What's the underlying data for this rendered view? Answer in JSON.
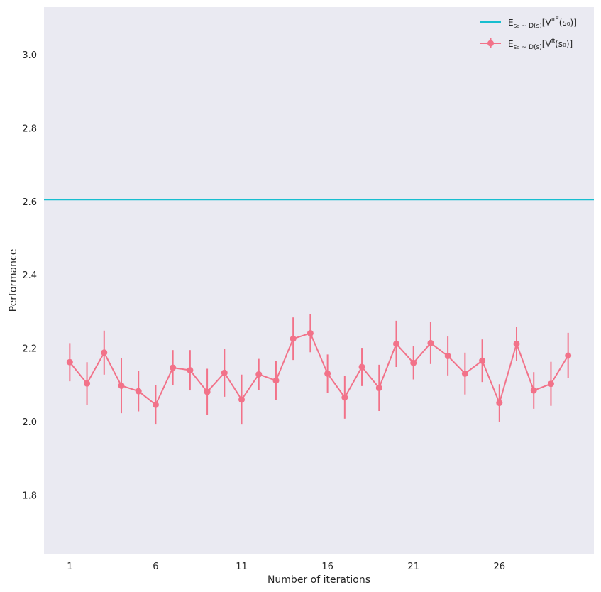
{
  "chart_data": {
    "type": "line",
    "xlabel": "Number of iterations",
    "ylabel": "Performance",
    "xlim": [
      -0.5,
      31.5
    ],
    "ylim": [
      1.64,
      3.13
    ],
    "xticks": [
      1,
      6,
      11,
      16,
      21,
      26
    ],
    "yticks": [
      1.8,
      2.0,
      2.2,
      2.4,
      2.6,
      2.8,
      3.0
    ],
    "ytick_labels": [
      "1.8",
      "2.0",
      "2.2",
      "2.4",
      "2.6",
      "2.8",
      "3.0"
    ],
    "grid": false,
    "legend_position": "top-right",
    "background_color": "#eaeaf2",
    "series": [
      {
        "name": "E_{s0 ~ D(s)}[V^{πE}(s0)]",
        "kind": "hline",
        "color": "#17becf",
        "y": 2.605
      },
      {
        "name": "E_{s0 ~ D(s)}[V^{π̂}(s0)]",
        "kind": "errorbar",
        "color": "#f27289",
        "x": [
          1,
          2,
          3,
          4,
          5,
          6,
          7,
          8,
          9,
          10,
          11,
          12,
          13,
          14,
          15,
          16,
          17,
          18,
          19,
          20,
          21,
          22,
          23,
          24,
          25,
          26,
          27,
          28,
          29,
          30
        ],
        "y": [
          2.162,
          2.104,
          2.188,
          2.098,
          2.083,
          2.046,
          2.147,
          2.14,
          2.081,
          2.133,
          2.06,
          2.129,
          2.112,
          2.226,
          2.241,
          2.131,
          2.066,
          2.149,
          2.092,
          2.212,
          2.16,
          2.214,
          2.179,
          2.131,
          2.166,
          2.051,
          2.212,
          2.085,
          2.103,
          2.18
        ],
        "err": [
          0.052,
          0.058,
          0.06,
          0.075,
          0.055,
          0.054,
          0.048,
          0.055,
          0.063,
          0.065,
          0.068,
          0.042,
          0.053,
          0.058,
          0.052,
          0.052,
          0.058,
          0.052,
          0.063,
          0.063,
          0.045,
          0.057,
          0.053,
          0.057,
          0.058,
          0.051,
          0.046,
          0.05,
          0.06,
          0.062
        ]
      }
    ]
  },
  "legend": {
    "entries": [
      {
        "label_main": "E",
        "sub": "s₀ ~ D(s)",
        "bracket_open": "[V",
        "sup": "πE",
        "arg": "(s₀)]"
      },
      {
        "label_main": "E",
        "sub": "s₀ ~ D(s)",
        "bracket_open": "[V",
        "sup": "π̂",
        "arg": "(s₀)]"
      }
    ]
  }
}
